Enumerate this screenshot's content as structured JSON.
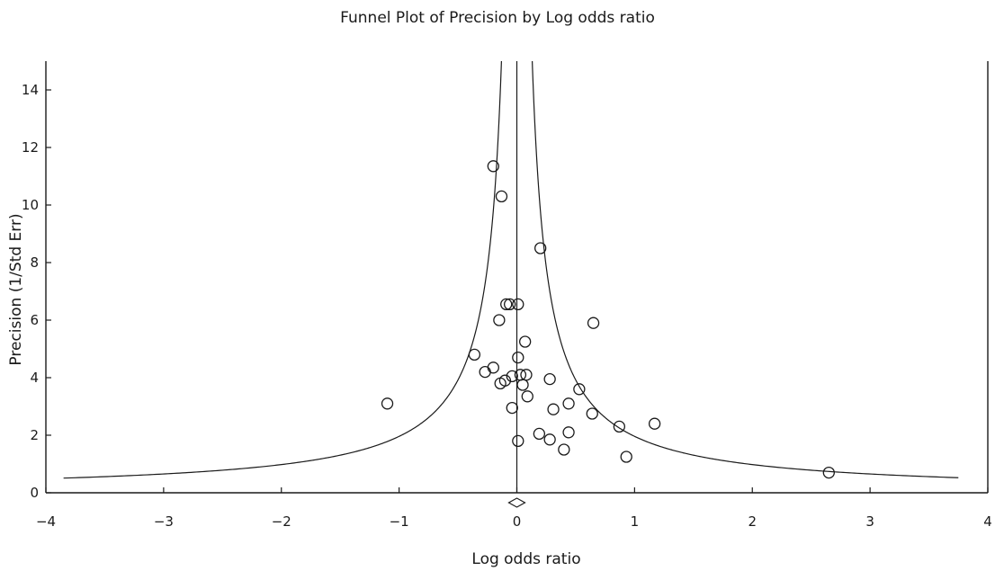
{
  "chart_data": {
    "type": "scatter",
    "title": "Funnel Plot of Precision by Log odds ratio",
    "xlabel": "Log odds ratio",
    "ylabel": "Precision (1/Std Err)",
    "xlim": [
      -4,
      4
    ],
    "ylim": [
      0,
      15
    ],
    "xticks": [
      -4,
      -3,
      -2,
      -1,
      0,
      1,
      2,
      3,
      4
    ],
    "xtick_labels": [
      "−4",
      "−3",
      "−2",
      "−1",
      "0",
      "1",
      "2",
      "3",
      "4"
    ],
    "yticks": [
      0,
      2,
      4,
      6,
      8,
      10,
      12,
      14
    ],
    "ytick_labels": [
      "0",
      "2",
      "4",
      "6",
      "8",
      "10",
      "12",
      "14"
    ],
    "grid": false,
    "summary_effect": 0.0,
    "funnel_bounds_z": 1.96,
    "funnel_x_range": [
      -3.85,
      3.75
    ],
    "points": [
      {
        "x": -0.2,
        "y": 11.35
      },
      {
        "x": -0.13,
        "y": 10.3
      },
      {
        "x": 0.2,
        "y": 8.5
      },
      {
        "x": -0.09,
        "y": 6.55
      },
      {
        "x": -0.06,
        "y": 6.55
      },
      {
        "x": 0.01,
        "y": 6.55
      },
      {
        "x": -0.15,
        "y": 6.0
      },
      {
        "x": 0.65,
        "y": 5.9
      },
      {
        "x": 0.07,
        "y": 5.25
      },
      {
        "x": -0.36,
        "y": 4.8
      },
      {
        "x": 0.01,
        "y": 4.7
      },
      {
        "x": -0.2,
        "y": 4.35
      },
      {
        "x": -0.27,
        "y": 4.2
      },
      {
        "x": 0.03,
        "y": 4.1
      },
      {
        "x": 0.08,
        "y": 4.1
      },
      {
        "x": -0.04,
        "y": 4.05
      },
      {
        "x": 0.28,
        "y": 3.95
      },
      {
        "x": -0.1,
        "y": 3.9
      },
      {
        "x": -0.14,
        "y": 3.8
      },
      {
        "x": 0.05,
        "y": 3.75
      },
      {
        "x": 0.53,
        "y": 3.6
      },
      {
        "x": 0.09,
        "y": 3.35
      },
      {
        "x": 0.44,
        "y": 3.1
      },
      {
        "x": -1.1,
        "y": 3.1
      },
      {
        "x": -0.04,
        "y": 2.95
      },
      {
        "x": 0.31,
        "y": 2.9
      },
      {
        "x": 0.64,
        "y": 2.75
      },
      {
        "x": 1.17,
        "y": 2.4
      },
      {
        "x": 0.87,
        "y": 2.3
      },
      {
        "x": 0.44,
        "y": 2.1
      },
      {
        "x": 0.19,
        "y": 2.05
      },
      {
        "x": 0.28,
        "y": 1.85
      },
      {
        "x": 0.01,
        "y": 1.8
      },
      {
        "x": 0.4,
        "y": 1.5
      },
      {
        "x": 0.93,
        "y": 1.25
      },
      {
        "x": 2.65,
        "y": 0.7
      }
    ]
  }
}
